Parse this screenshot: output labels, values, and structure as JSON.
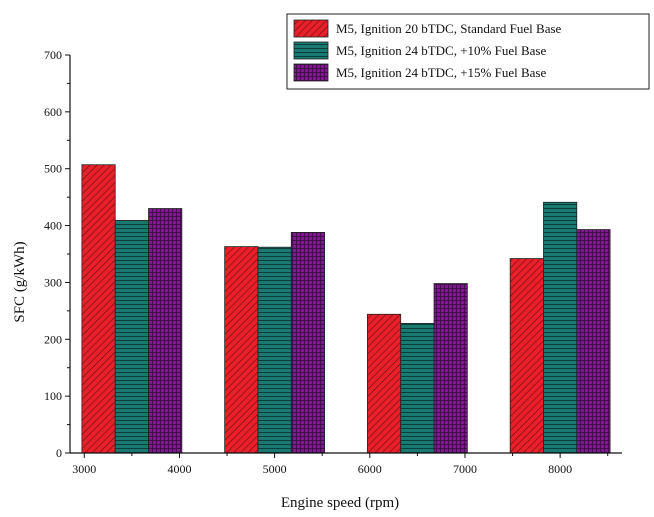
{
  "chart_data": {
    "type": "bar",
    "title": "",
    "xlabel": "Engine speed (rpm)",
    "ylabel": "SFC (g/kWh)",
    "ylim": [
      0,
      700
    ],
    "yticks": [
      0,
      100,
      200,
      300,
      400,
      500,
      600,
      700
    ],
    "grid": false,
    "legend_position": "top-right",
    "categories": [
      "3500",
      "5000",
      "6500",
      "8000"
    ],
    "xlim": [
      2850,
      8650
    ],
    "xticks": [
      "3000",
      "4000",
      "5000",
      "6000",
      "7000",
      "8000"
    ],
    "xtick_values": [
      3000,
      4000,
      5000,
      6000,
      7000,
      8000
    ],
    "series": [
      {
        "name": "M5, Ignition 20 bTDC, Standard Fuel Base",
        "color": "#e8202a",
        "pattern": "diagonal",
        "values": [
          507,
          363,
          244,
          342
        ]
      },
      {
        "name": "M5, Ignition 24 bTDC, +10% Fuel Base",
        "color": "#1a7a72",
        "pattern": "horizontal",
        "values": [
          409,
          362,
          228,
          441
        ]
      },
      {
        "name": "M5, Ignition 24 bTDC, +15% Fuel Base",
        "color": "#7d1a8c",
        "pattern": "grid",
        "values": [
          430,
          388,
          298,
          393
        ]
      }
    ]
  }
}
